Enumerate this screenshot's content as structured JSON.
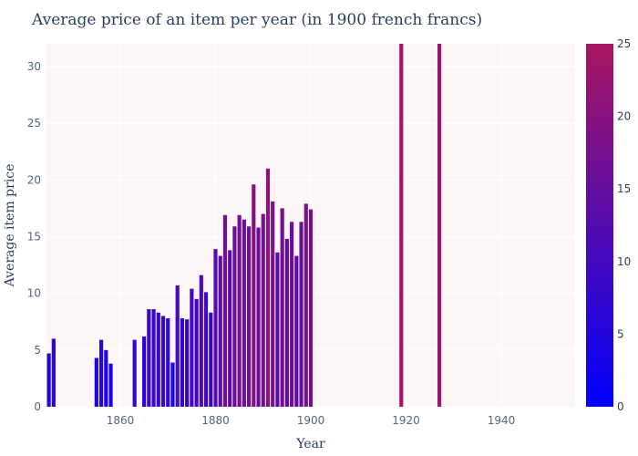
{
  "chart_data": {
    "type": "bar",
    "title": "Average price of an item per year (in 1900 french francs)",
    "xlabel": "Year",
    "ylabel": "Average item price",
    "xlim": [
      1844.5,
      1955.5
    ],
    "ylim": [
      0,
      32
    ],
    "xticks": [
      1860,
      1880,
      1900,
      1920,
      1940
    ],
    "yticks": [
      0,
      5,
      10,
      15,
      20,
      25,
      30
    ],
    "colorscale": {
      "min": 0,
      "max": 25,
      "low_color": "#0000ff",
      "high_color": "#a8165f",
      "ticks": [
        0,
        5,
        10,
        15,
        20,
        25
      ]
    },
    "colors": {
      "plot_bg": "#fcf6f6",
      "grid": "#ffffff",
      "text": "#2a3f5f"
    },
    "x": [
      1845,
      1846,
      1855,
      1856,
      1857,
      1858,
      1863,
      1865,
      1866,
      1867,
      1868,
      1869,
      1870,
      1871,
      1872,
      1873,
      1874,
      1875,
      1876,
      1877,
      1878,
      1879,
      1880,
      1881,
      1882,
      1883,
      1884,
      1885,
      1886,
      1887,
      1888,
      1889,
      1890,
      1891,
      1892,
      1893,
      1894,
      1895,
      1896,
      1897,
      1898,
      1899,
      1900,
      1919,
      1927
    ],
    "values": [
      4.7,
      6.0,
      4.3,
      5.9,
      5.0,
      3.8,
      5.9,
      6.2,
      8.6,
      8.6,
      8.3,
      8.0,
      7.8,
      3.9,
      10.7,
      7.8,
      7.7,
      10.4,
      9.5,
      11.6,
      10.1,
      8.3,
      13.9,
      13.3,
      16.9,
      13.8,
      15.9,
      16.9,
      16.5,
      15.9,
      19.6,
      15.8,
      17.0,
      21.0,
      18.1,
      13.6,
      17.5,
      14.8,
      16.3,
      13.3,
      16.3,
      17.9,
      17.4,
      32,
      32
    ],
    "color_values": [
      4.7,
      6.0,
      4.3,
      5.9,
      5.0,
      3.8,
      5.9,
      6.2,
      8.6,
      8.6,
      8.3,
      8.0,
      7.8,
      3.9,
      10.7,
      7.8,
      7.7,
      10.4,
      9.5,
      11.6,
      10.1,
      8.3,
      13.9,
      13.3,
      16.9,
      13.8,
      15.9,
      16.9,
      16.5,
      15.9,
      19.6,
      15.8,
      17.0,
      21.0,
      18.1,
      13.6,
      17.5,
      14.8,
      16.3,
      13.3,
      16.3,
      17.9,
      17.4,
      24,
      22.5
    ]
  }
}
